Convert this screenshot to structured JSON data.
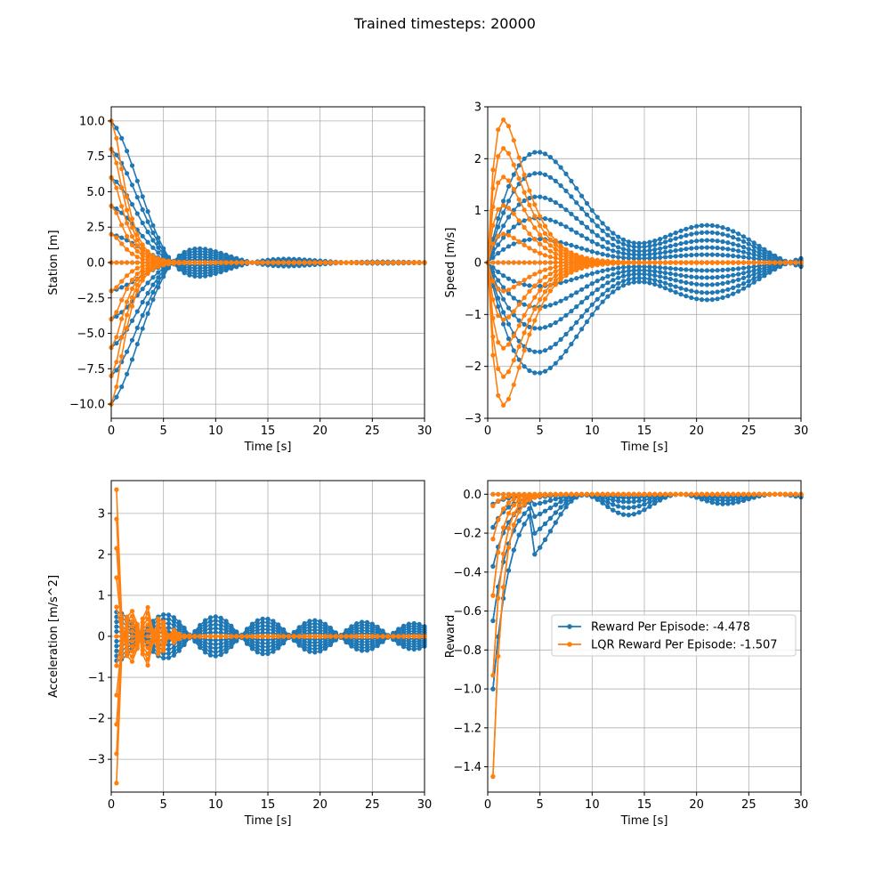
{
  "figure": {
    "title": "Trained timesteps: 20000"
  },
  "colors": {
    "agent": "#1f77b4",
    "lqr": "#ff7f0e",
    "grid": "#b0b0b0"
  },
  "chart_data": [
    {
      "type": "line",
      "id": "station",
      "xlabel": "Time [s]",
      "ylabel": "Station [m]",
      "xlim": [
        0,
        30
      ],
      "ylim": [
        -11,
        11
      ],
      "xticks": [
        0,
        5,
        10,
        15,
        20,
        25,
        30
      ],
      "yticks": [
        -10.0,
        -7.5,
        -5.0,
        -2.5,
        0.0,
        2.5,
        5.0,
        7.5,
        10.0
      ],
      "ytick_labels": [
        "−10.0",
        "−7.5",
        "−5.0",
        "−2.5",
        "0.0",
        "2.5",
        "5.0",
        "7.5",
        "10.0"
      ],
      "grid": true,
      "series_groups": [
        {
          "name": "agent",
          "color": "agent",
          "initial_values": [
            10,
            8,
            6,
            4,
            2,
            0,
            -2,
            -4,
            -6,
            -8,
            -10
          ],
          "model": "damped-oscillation",
          "period_s": 18,
          "damping": 0.6
        },
        {
          "name": "LQR",
          "color": "lqr",
          "initial_values": [
            10,
            8,
            6,
            4,
            2,
            0,
            -2,
            -4,
            -6,
            -8,
            -10
          ],
          "model": "fast-decay",
          "settle_s": 6
        }
      ]
    },
    {
      "type": "line",
      "id": "speed",
      "xlabel": "Time [s]",
      "ylabel": "Speed [m/s]",
      "xlim": [
        0,
        30
      ],
      "ylim": [
        -3,
        3
      ],
      "xticks": [
        0,
        5,
        10,
        15,
        20,
        25,
        30
      ],
      "yticks": [
        -3,
        -2,
        -1,
        0,
        1,
        2,
        3
      ],
      "ytick_labels": [
        "−3",
        "−2",
        "−1",
        "0",
        "1",
        "2",
        "3"
      ],
      "grid": true,
      "series_groups": [
        {
          "name": "agent",
          "color": "agent",
          "peak_values": [
            2.35,
            1.9,
            1.4,
            0.95,
            0.5,
            0,
            -0.5,
            -0.95,
            -1.4,
            -1.9,
            -2.35
          ],
          "peak_time_s": 6,
          "period_s": 18
        },
        {
          "name": "LQR",
          "color": "lqr",
          "peak_values": [
            2.75,
            2.2,
            1.65,
            1.1,
            0.55,
            0,
            -0.55,
            -1.1,
            -1.65,
            -2.2,
            -2.75
          ],
          "peak_time_s": 1.5
        }
      ]
    },
    {
      "type": "line",
      "id": "acceleration",
      "xlabel": "Time [s]",
      "ylabel": "Acceleration [m/s^2]",
      "xlim": [
        0,
        30
      ],
      "ylim": [
        -3.8,
        3.8
      ],
      "xticks": [
        0,
        5,
        10,
        15,
        20,
        25,
        30
      ],
      "yticks": [
        -3,
        -2,
        -1,
        0,
        1,
        2,
        3
      ],
      "ytick_labels": [
        "−3",
        "−2",
        "−1",
        "0",
        "1",
        "2",
        "3"
      ],
      "grid": true,
      "series_groups": [
        {
          "name": "agent",
          "color": "agent",
          "initial_values": [
            0.6,
            0.48,
            0.36,
            0.24,
            0.12,
            0,
            -0.12,
            -0.24,
            -0.36,
            -0.48,
            -0.6
          ],
          "period_s": 9.5
        },
        {
          "name": "LQR",
          "color": "lqr",
          "initial_values": [
            3.45,
            2.76,
            2.07,
            1.38,
            0.69,
            0,
            -0.69,
            -1.38,
            -2.07,
            -2.76,
            -3.45
          ],
          "settle_s": 8
        }
      ]
    },
    {
      "type": "line",
      "id": "reward",
      "xlabel": "Time [s]",
      "ylabel": "Reward",
      "xlim": [
        0,
        30
      ],
      "ylim": [
        -1.53,
        0.07
      ],
      "xticks": [
        0,
        5,
        10,
        15,
        20,
        25,
        30
      ],
      "yticks": [
        -1.4,
        -1.2,
        -1.0,
        -0.8,
        -0.6,
        -0.4,
        -0.2,
        0.0
      ],
      "ytick_labels": [
        "−1.4",
        "−1.2",
        "−1.0",
        "−0.8",
        "−0.6",
        "−0.4",
        "−0.2",
        "0.0"
      ],
      "grid": true,
      "series_groups": [
        {
          "name": "agent",
          "color": "agent",
          "initial_values": [
            -1.0,
            -0.65,
            -0.37,
            -0.17,
            -0.05,
            0,
            -0.05,
            -0.17,
            -0.37,
            -0.65,
            -1.0
          ]
        },
        {
          "name": "LQR",
          "color": "lqr",
          "initial_values": [
            -1.45,
            -0.93,
            -0.52,
            -0.23,
            -0.06,
            0,
            -0.06,
            -0.23,
            -0.52,
            -0.93,
            -1.45
          ]
        }
      ],
      "legend": {
        "placement": "center-right",
        "entries": [
          {
            "label": "Reward Per Episode: -4.478",
            "color": "agent"
          },
          {
            "label": "LQR Reward Per Episode: -1.507",
            "color": "lqr"
          }
        ]
      }
    }
  ]
}
